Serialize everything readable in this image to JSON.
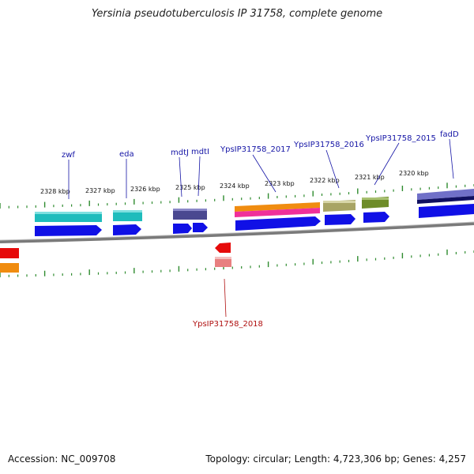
{
  "title": "Yersinia pseudotuberculosis IP 31758, complete genome",
  "footer": {
    "accession": "Accession: NC_009708",
    "stats": "Topology: circular; Length: 4,723,306 bp; Genes: 4,257"
  },
  "kbp_labels": [
    "2328 kbp",
    "2327 kbp",
    "2326 kbp",
    "2325 kbp",
    "2324 kbp",
    "2323 kbp",
    "2322 kbp",
    "2321 kbp",
    "2320 kbp"
  ],
  "gene_labels": {
    "zwf": "zwf",
    "eda": "eda",
    "mdtJ": "mdtJ",
    "mdtI": "mdtI",
    "ypsip2017": "YpsIP31758_2017",
    "ypsip2016": "YpsIP31758_2016",
    "ypsip2015": "YpsIP31758_2015",
    "fadD": "fadD",
    "ypsip2018": "YpsIP31758_2018"
  },
  "colors": {
    "backbone": "#8c8c8c",
    "ticks": "#2e8b2e",
    "cds": "#1010e6",
    "teal": "#1fbcbc",
    "navy": "#4a4890",
    "orange": "#f08c10",
    "magenta": "#f0309a",
    "khaki": "#a8a464",
    "olive": "#6e8c28",
    "lavender": "#7070c8",
    "red": "#e60a0a",
    "pink": "#e88080"
  }
}
